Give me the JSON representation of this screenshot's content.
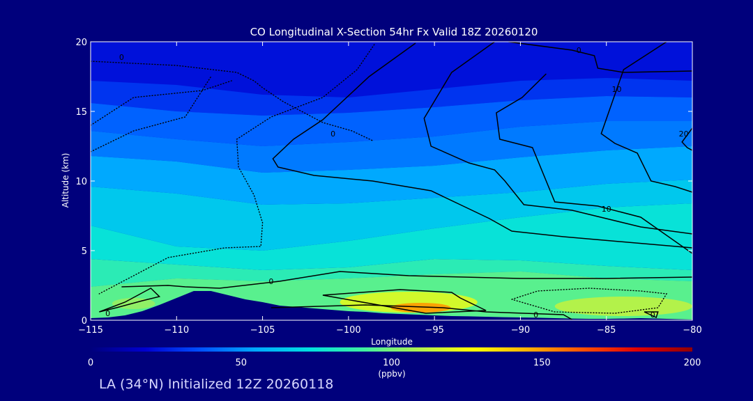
{
  "chart_data": {
    "type": "heatmap",
    "title": "CO Longitudinal X-Section 54hr  Fx Valid 18Z 20260120",
    "xlabel": "Longitude",
    "ylabel": "Altitude (km)",
    "xlim": [
      -115,
      -80
    ],
    "ylim": [
      0,
      20
    ],
    "x_ticks": [
      -115,
      -110,
      -105,
      -100,
      -95,
      -90,
      -85,
      -80
    ],
    "y_ticks": [
      0,
      5,
      10,
      15,
      20
    ],
    "colorbar": {
      "label": "(ppbv)",
      "range": [
        0,
        200
      ],
      "ticks": [
        0,
        50,
        100,
        150,
        200
      ],
      "colors": [
        "#00007c",
        "#0000d0",
        "#0050ff",
        "#00a8ff",
        "#00e0e0",
        "#40f0a0",
        "#b0f050",
        "#ffff00",
        "#ffb000",
        "#ff5000",
        "#e00000",
        "#900000"
      ]
    },
    "bands": [
      {
        "name": "band-upper",
        "value": 30,
        "x": [
          -115,
          -110,
          -105,
          -100,
          -95,
          -90,
          -85,
          -80
        ],
        "y": [
          17.2,
          16.9,
          16.2,
          16.0,
          16.6,
          17.2,
          17.4,
          17.2
        ]
      },
      {
        "name": "band-upper-mid",
        "value": 40,
        "x": [
          -115,
          -110,
          -105,
          -100,
          -95,
          -90,
          -85,
          -80
        ],
        "y": [
          15.6,
          15.0,
          14.7,
          14.9,
          15.3,
          15.8,
          16.1,
          16.0
        ]
      },
      {
        "name": "band-mid-high",
        "value": 45,
        "x": [
          -115,
          -110,
          -105,
          -100,
          -95,
          -90,
          -85,
          -80
        ],
        "y": [
          13.6,
          13.0,
          12.5,
          12.8,
          13.2,
          13.9,
          14.3,
          14.3
        ]
      },
      {
        "name": "band-mid",
        "value": 55,
        "x": [
          -115,
          -110,
          -105,
          -100,
          -95,
          -90,
          -85,
          -80
        ],
        "y": [
          11.8,
          11.4,
          10.6,
          10.8,
          11.1,
          11.7,
          12.2,
          12.5
        ]
      },
      {
        "name": "band-lower-mid",
        "value": 65,
        "x": [
          -115,
          -110,
          -105,
          -100,
          -95,
          -90,
          -85,
          -80
        ],
        "y": [
          9.6,
          9.1,
          8.3,
          8.4,
          8.8,
          9.2,
          9.8,
          10.1
        ]
      },
      {
        "name": "band-low",
        "value": 75,
        "x": [
          -115,
          -110,
          -105,
          -100,
          -95,
          -90,
          -85,
          -80
        ],
        "y": [
          6.8,
          5.3,
          5.0,
          5.7,
          6.6,
          7.4,
          8.1,
          8.4
        ]
      },
      {
        "name": "band-bl-top",
        "value": 85,
        "x": [
          -115,
          -110,
          -105,
          -100,
          -95,
          -90,
          -85,
          -80
        ],
        "y": [
          4.4,
          4.0,
          3.6,
          3.8,
          4.4,
          4.3,
          3.9,
          3.6
        ]
      },
      {
        "name": "band-bl",
        "value": 95,
        "x": [
          -115,
          -110,
          -105,
          -100,
          -95,
          -90,
          -85,
          -80
        ],
        "y": [
          2.4,
          3.0,
          2.8,
          3.0,
          3.3,
          3.5,
          3.0,
          2.8
        ]
      }
    ],
    "plumes": [
      {
        "name": "plume-main",
        "value": 120,
        "center": [
          -96.5,
          1.3
        ],
        "extent": [
          8.0,
          1.5
        ]
      },
      {
        "name": "plume-core",
        "value": 150,
        "center": [
          -95.8,
          0.9
        ],
        "extent": [
          3.5,
          0.7
        ]
      },
      {
        "name": "plume-east",
        "value": 112,
        "center": [
          -84.0,
          1.0
        ],
        "extent": [
          8.0,
          1.4
        ]
      },
      {
        "name": "plume-west",
        "value": 105,
        "center": [
          -112.5,
          1.2
        ],
        "extent": [
          2.5,
          0.8
        ]
      }
    ],
    "terrain": {
      "x": [
        -115,
        -114,
        -113,
        -112,
        -111,
        -110,
        -109,
        -108,
        -107,
        -106,
        -105,
        -104,
        -103,
        -102,
        -101,
        -100,
        -99,
        -98,
        -97,
        -96,
        -95,
        -94,
        -93,
        -92,
        -91,
        -90,
        -89,
        -88,
        -87,
        -86,
        -85,
        -84,
        -83,
        -82,
        -81,
        -80
      ],
      "y": [
        0.15,
        0.2,
        0.35,
        0.65,
        1.1,
        1.6,
        2.1,
        2.1,
        1.8,
        1.5,
        1.3,
        1.05,
        0.95,
        0.85,
        0.75,
        0.65,
        0.6,
        0.5,
        0.45,
        0.4,
        0.35,
        0.3,
        0.28,
        0.25,
        0.22,
        0.2,
        0.18,
        0.15,
        0.12,
        0.1,
        0.1,
        0.12,
        0.15,
        0.12,
        0.08,
        0.05
      ]
    },
    "contours": [
      {
        "name": "contour-zero-northwest",
        "style": "dotted",
        "label": "0",
        "label_at": [
          -113.2,
          18.9
        ],
        "x": [
          -115,
          -110,
          -106.5,
          -105.5,
          -105,
          -103.8,
          -101.5,
          -99.8,
          -98.6
        ],
        "y": [
          18.6,
          18.3,
          17.8,
          17.2,
          16.7,
          15.7,
          14.2,
          13.6,
          12.9
        ]
      },
      {
        "name": "contour-zero-ridge",
        "style": "dotted",
        "label": "",
        "x": [
          -98.5,
          -99.5,
          -101.5,
          -104.5,
          -106.5,
          -106.4,
          -105.5,
          -105.0,
          -105.1,
          -107.2,
          -110.5,
          -114.5
        ],
        "y": [
          19.8,
          18.0,
          16.0,
          14.6,
          13.0,
          11.0,
          9.0,
          7.0,
          5.3,
          5.2,
          4.5,
          1.9
        ]
      },
      {
        "name": "contour-zero-west",
        "style": "dotted",
        "label": "",
        "x": [
          -115,
          -112.5,
          -109.5,
          -108.0
        ],
        "y": [
          12.1,
          13.6,
          14.6,
          17.5
        ]
      },
      {
        "name": "contour-zero-upper-left",
        "style": "dotted",
        "label": "",
        "x": [
          -115,
          -112.5,
          -108.5,
          -106.8
        ],
        "y": [
          14.0,
          16.0,
          16.5,
          17.2
        ]
      },
      {
        "name": "contour-zero-trough",
        "style": "solid",
        "label": "0",
        "label_at": [
          -100.9,
          13.4
        ],
        "x": [
          -96.1,
          -98.8,
          -101.5,
          -103.2,
          -104.4,
          -104.1,
          -102.0,
          -98.6,
          -95.2,
          -93.5,
          -91.8,
          -90.5,
          -87.5,
          -80.0
        ],
        "y": [
          19.9,
          17.5,
          14.4,
          13.0,
          11.6,
          11.0,
          10.4,
          10.0,
          9.3,
          8.3,
          7.3,
          6.4,
          6.0,
          5.2
        ]
      },
      {
        "name": "contour-ten-mid",
        "style": "solid",
        "label": "10",
        "label_at": [
          -85.0,
          8.0
        ],
        "x": [
          -91.5,
          -94.0,
          -95.6,
          -95.2,
          -93.0,
          -91.5,
          -90.9,
          -89.8,
          -87.0,
          -83.0,
          -80.0
        ],
        "y": [
          20.0,
          17.8,
          14.5,
          12.5,
          11.3,
          10.8,
          10.0,
          8.3,
          7.9,
          6.7,
          6.2
        ]
      },
      {
        "name": "contour-ten-east",
        "style": "solid",
        "label": "10",
        "label_at": [
          -84.4,
          16.6
        ],
        "x": [
          -88.5,
          -89.9,
          -91.4,
          -91.2,
          -89.3,
          -88.5,
          -88.0,
          -85.5,
          -83.0,
          -80.0
        ],
        "y": [
          17.7,
          16.0,
          14.9,
          13.0,
          12.4,
          10.0,
          8.5,
          8.2,
          7.4,
          4.8
        ]
      },
      {
        "name": "contour-ten-upper",
        "style": "solid",
        "label": "0",
        "label_at": [
          -86.6,
          19.4
        ],
        "x": [
          -90.7,
          -87.0,
          -85.7,
          -85.5,
          -84.0,
          -80.0
        ],
        "y": [
          20.0,
          19.4,
          19.0,
          18.1,
          17.8,
          17.9
        ]
      },
      {
        "name": "contour-twenty-east",
        "style": "solid",
        "label": "20",
        "label_at": [
          -80.5,
          13.4
        ],
        "x": [
          -81.5,
          -82.5,
          -84.0,
          -85.3,
          -84.5,
          -83.2,
          -82.4,
          -81.0,
          -80.0
        ],
        "y": [
          20.0,
          19.2,
          18.0,
          13.4,
          12.7,
          12.0,
          10.0,
          9.6,
          9.2
        ]
      },
      {
        "name": "contour-twenty-edge",
        "style": "solid",
        "label": "",
        "x": [
          -80.0,
          -80.6,
          -80.3,
          -80.0
        ],
        "y": [
          13.8,
          12.8,
          12.4,
          12.2
        ]
      },
      {
        "name": "contour-bl-zero",
        "style": "solid",
        "label": "0",
        "label_at": [
          -104.5,
          2.8
        ],
        "x": [
          -113.2,
          -110.5,
          -109.5,
          -107.5,
          -104.0,
          -100.5,
          -96.5,
          -90.0,
          -85.0,
          -80.0
        ],
        "y": [
          2.4,
          2.5,
          2.4,
          2.3,
          2.8,
          3.5,
          3.2,
          3.0,
          3.0,
          3.1
        ]
      },
      {
        "name": "contour-bl-inner",
        "style": "solid",
        "label": "",
        "x": [
          -101.5,
          -97.0,
          -94.0,
          -93.5,
          -92.0,
          -95.5,
          -101.5
        ],
        "y": [
          1.8,
          2.2,
          2.0,
          1.6,
          0.7,
          0.5,
          1.8
        ]
      },
      {
        "name": "contour-bl-outer",
        "style": "solid",
        "label": "0",
        "label_at": [
          -89.1,
          0.4
        ],
        "x": [
          -104.5,
          -99.0,
          -94.5,
          -92.0,
          -89.8,
          -87.5,
          -87.0
        ],
        "y": [
          0.9,
          1.1,
          0.9,
          0.6,
          0.5,
          0.4,
          0.05
        ]
      },
      {
        "name": "contour-sw-loop",
        "style": "solid",
        "label": "0",
        "label_at": [
          -114.0,
          0.5
        ],
        "x": [
          -114.5,
          -113.0,
          -111.5,
          -111.0,
          -112.0,
          -113.5,
          -114.5
        ],
        "y": [
          0.6,
          1.3,
          2.3,
          1.7,
          1.4,
          0.9,
          0.6
        ]
      },
      {
        "name": "contour-east-dotted",
        "style": "dotted",
        "label": "",
        "x": [
          -90.5,
          -89.0,
          -86.0,
          -83.0,
          -81.5,
          -82.0,
          -84.5,
          -88.0,
          -90.5
        ],
        "y": [
          1.5,
          2.1,
          2.3,
          2.1,
          1.9,
          0.9,
          0.5,
          0.6,
          1.5
        ]
      },
      {
        "name": "contour-east-small",
        "style": "solid",
        "label": "0",
        "label_at": [
          -82.3,
          0.4
        ],
        "x": [
          -82.8,
          -82.0,
          -82.1,
          -82.8
        ],
        "y": [
          0.6,
          0.6,
          0.2,
          0.6
        ]
      }
    ]
  },
  "footer": {
    "caption": "LA (34°N) Initialized 12Z 20260118"
  }
}
